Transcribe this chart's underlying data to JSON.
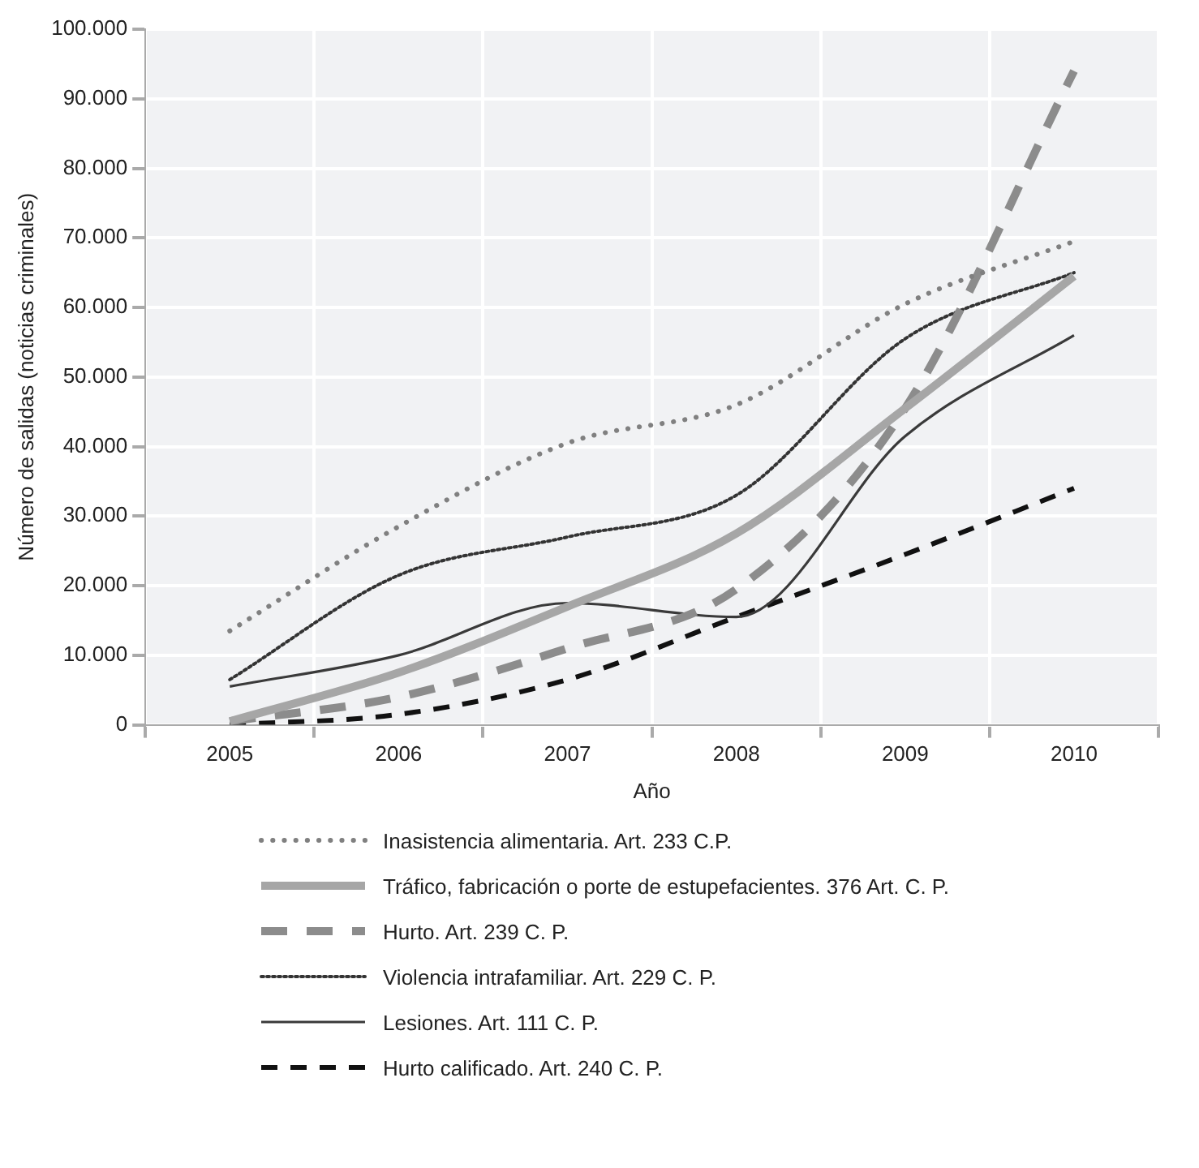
{
  "chart_data": {
    "type": "line",
    "xlabel": "Año",
    "ylabel": "Número de salidas (noticias criminales)",
    "categories": [
      "2005",
      "2006",
      "2007",
      "2008",
      "2009",
      "2010"
    ],
    "series": [
      {
        "name": "Inasistencia alimentaria. Art. 233 C.P.",
        "color": "#808080",
        "line_style": "dotted",
        "values": [
          13500,
          28500,
          40500,
          46000,
          60500,
          69500
        ]
      },
      {
        "name": "Tráfico, fabricación o porte de estupefacientes. 376 Art. C. P.",
        "color": "#a6a6a6",
        "line_style": "solid",
        "values": [
          500,
          7500,
          17000,
          27500,
          45500,
          64500
        ]
      },
      {
        "name": "Hurto. Art. 239 C. P.",
        "color": "#8c8c8c",
        "line_style": "dashed",
        "values": [
          500,
          4000,
          11000,
          19500,
          45500,
          94000
        ]
      },
      {
        "name": "Violencia intrafamiliar. Art. 229 C. P.",
        "color": "#333333",
        "line_style": "dotted",
        "values": [
          6500,
          21500,
          27000,
          33000,
          55500,
          65000
        ]
      },
      {
        "name": "Lesiones. Art. 111 C. P.",
        "color": "#3a3a3a",
        "line_style": "solid",
        "values": [
          5500,
          10000,
          17500,
          15500,
          41500,
          56000
        ]
      },
      {
        "name": "Hurto calificado. Art. 240 C. P.",
        "color": "#111111",
        "line_style": "dashed",
        "values": [
          0,
          1500,
          6500,
          15500,
          24500,
          34000
        ]
      }
    ],
    "ylim": [
      0,
      100000
    ],
    "yticks": [
      0,
      {
        "value": 10000,
        "label": "10.000"
      },
      {
        "value": 20000,
        "label": "20.000"
      },
      {
        "value": 30000,
        "label": "30.000"
      },
      {
        "value": 40000,
        "label": "40.000"
      },
      {
        "value": 50000,
        "label": "50.000"
      },
      {
        "value": 60000,
        "label": "60.000"
      },
      {
        "value": 70000,
        "label": "70.000"
      },
      {
        "value": 80000,
        "label": "80.000"
      },
      {
        "value": 90000,
        "label": "90.000"
      },
      {
        "value": 100000,
        "label": "100.000"
      }
    ],
    "grid": true,
    "legend": "bottom",
    "marker": "none"
  }
}
